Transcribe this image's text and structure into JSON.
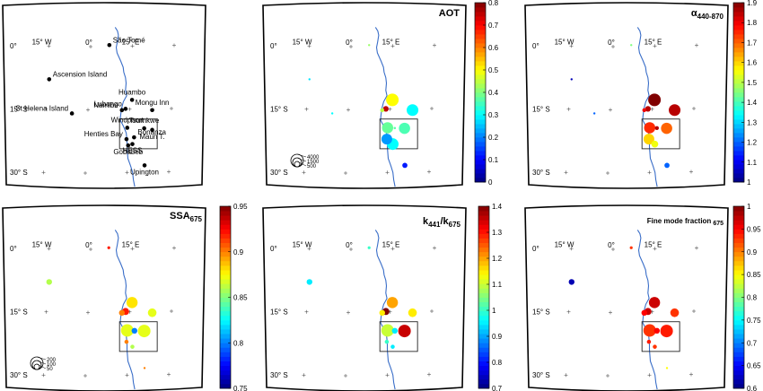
{
  "chart_data": [
    {
      "type": "scatter",
      "subtype": "map-sites",
      "title": "",
      "lon_ticks": [
        "15° W",
        "0°",
        "15° E"
      ],
      "lat_ticks": [
        "0°",
        "15° S",
        "30° S"
      ],
      "sites": [
        {
          "name": "São Tomé",
          "lon": 6.7,
          "lat": 0.3,
          "label_side": "right"
        },
        {
          "name": "Ascension Island",
          "lon": -14.4,
          "lat": -7.9,
          "label_side": "right"
        },
        {
          "name": "St Helena Island",
          "lon": -5.7,
          "lat": -15.9,
          "label_side": "left"
        },
        {
          "name": "Huambo",
          "lon": 15.7,
          "lat": -12.8,
          "label_side": "top"
        },
        {
          "name": "Lubango",
          "lon": 13.5,
          "lat": -14.9,
          "label_side": "left"
        },
        {
          "name": "Mongu Inn",
          "lon": 23.1,
          "lat": -15.3,
          "label_side": "top"
        },
        {
          "name": "Namibe",
          "lon": 12.2,
          "lat": -15.2,
          "label_side": "left"
        },
        {
          "name": "Windpoort",
          "lon": 14.4,
          "lat": -19.4,
          "label_side": "top"
        },
        {
          "name": "Tsumkwe",
          "lon": 20.5,
          "lat": -19.6,
          "label_side": "top"
        },
        {
          "name": "Henties Bay",
          "lon": 14.3,
          "lat": -22.1,
          "label_side": "left"
        },
        {
          "name": "Maun T.",
          "lon": 23.4,
          "lat": -20.0,
          "label_side": "bottom"
        },
        {
          "name": "Bonanza",
          "lon": 17.0,
          "lat": -21.7,
          "label_side": "right"
        },
        {
          "name": "Gobabeb",
          "lon": 15.0,
          "lat": -23.6,
          "label_side": "bottom"
        },
        {
          "name": "HESS",
          "lon": 16.5,
          "lat": -23.3,
          "label_side": "bottom"
        },
        {
          "name": "Upington",
          "lon": 21.2,
          "lat": -28.4,
          "label_side": "bottom"
        }
      ]
    },
    {
      "type": "scatter",
      "subtype": "map-bubble",
      "title": "AOT",
      "colorbar": {
        "min": 0,
        "max": 0.8,
        "ticks": [
          "0",
          "0.1",
          "0.2",
          "0.3",
          "0.4",
          "0.5",
          "0.6",
          "0.7",
          "0.8"
        ]
      },
      "size_legend": [
        "4000",
        "1500",
        "500"
      ],
      "points": [
        {
          "lon": 6.5,
          "lat": 0.3,
          "value": 0.42,
          "n": 80
        },
        {
          "lon": -14.4,
          "lat": -7.9,
          "value": 0.28,
          "n": 90
        },
        {
          "lon": -5.7,
          "lat": -15.9,
          "value": 0.3,
          "n": 5
        },
        {
          "lon": 15.7,
          "lat": -12.8,
          "value": 0.5,
          "n": 3000
        },
        {
          "lon": 13.5,
          "lat": -14.9,
          "value": 0.75,
          "n": 600
        },
        {
          "lon": 12.2,
          "lat": -15.2,
          "value": 0.45,
          "n": 300
        },
        {
          "lon": 23.1,
          "lat": -15.3,
          "value": 0.3,
          "n": 2600
        },
        {
          "lon": 14.4,
          "lat": -19.4,
          "value": 0.38,
          "n": 2400
        },
        {
          "lon": 20.5,
          "lat": -19.6,
          "value": 0.36,
          "n": 2400
        },
        {
          "lon": 17.0,
          "lat": -19.5,
          "value": 0.37,
          "n": 100
        },
        {
          "lon": 14.3,
          "lat": -22.1,
          "value": 0.22,
          "n": 2200
        },
        {
          "lon": 16.5,
          "lat": -23.3,
          "value": 0.3,
          "n": 2600
        },
        {
          "lon": 21.2,
          "lat": -28.4,
          "value": 0.12,
          "n": 500
        }
      ]
    },
    {
      "type": "scatter",
      "subtype": "map-bubble",
      "title": "α440-870",
      "title_main": "α",
      "title_sub": "440-870",
      "colorbar": {
        "min": 1,
        "max": 1.9,
        "ticks": [
          "1",
          "1.1",
          "1.2",
          "1.3",
          "1.4",
          "1.5",
          "1.6",
          "1.7",
          "1.8",
          "1.9"
        ]
      },
      "points": [
        {
          "lon": 6.5,
          "lat": 0.3,
          "value": 1.45,
          "n": 80
        },
        {
          "lon": -14.4,
          "lat": -7.9,
          "value": 1.05,
          "n": 90
        },
        {
          "lon": -5.7,
          "lat": -15.9,
          "value": 1.2,
          "n": 5
        },
        {
          "lon": 15.7,
          "lat": -12.8,
          "value": 1.95,
          "n": 3000
        },
        {
          "lon": 13.5,
          "lat": -14.9,
          "value": 1.85,
          "n": 600
        },
        {
          "lon": 12.2,
          "lat": -15.2,
          "value": 1.8,
          "n": 300
        },
        {
          "lon": 23.1,
          "lat": -15.3,
          "value": 1.85,
          "n": 2600
        },
        {
          "lon": 14.4,
          "lat": -19.4,
          "value": 1.75,
          "n": 2400
        },
        {
          "lon": 20.5,
          "lat": -19.6,
          "value": 1.7,
          "n": 2400
        },
        {
          "lon": 17.0,
          "lat": -19.5,
          "value": 1.85,
          "n": 300
        },
        {
          "lon": 14.3,
          "lat": -22.1,
          "value": 1.6,
          "n": 2200
        },
        {
          "lon": 16.5,
          "lat": -23.3,
          "value": 1.55,
          "n": 900
        },
        {
          "lon": 21.2,
          "lat": -28.4,
          "value": 1.2,
          "n": 500
        }
      ]
    },
    {
      "type": "scatter",
      "subtype": "map-bubble",
      "title": "SSA675",
      "title_main": "SSA",
      "title_sub": "675",
      "colorbar": {
        "min": 0.75,
        "max": 0.95,
        "ticks": [
          "0.75",
          "0.8",
          "0.85",
          "0.9",
          "0.95"
        ]
      },
      "size_legend": [
        "200",
        "100",
        "50"
      ],
      "points": [
        {
          "lon": 6.5,
          "lat": 0.3,
          "value": 0.92,
          "n": 10
        },
        {
          "lon": -14.4,
          "lat": -7.9,
          "value": 0.86,
          "n": 40
        },
        {
          "lon": 15.7,
          "lat": -12.8,
          "value": 0.88,
          "n": 150
        },
        {
          "lon": 13.5,
          "lat": -14.9,
          "value": 0.92,
          "n": 60
        },
        {
          "lon": 12.2,
          "lat": -15.2,
          "value": 0.9,
          "n": 40
        },
        {
          "lon": 23.1,
          "lat": -15.3,
          "value": 0.87,
          "n": 90
        },
        {
          "lon": 14.4,
          "lat": -19.4,
          "value": 0.87,
          "n": 190
        },
        {
          "lon": 20.5,
          "lat": -19.6,
          "value": 0.87,
          "n": 190
        },
        {
          "lon": 17.0,
          "lat": -19.5,
          "value": 0.8,
          "n": 40
        },
        {
          "lon": 14.3,
          "lat": -22.1,
          "value": 0.9,
          "n": 20
        },
        {
          "lon": 16.5,
          "lat": -23.3,
          "value": 0.86,
          "n": 20
        },
        {
          "lon": 21.2,
          "lat": -28.4,
          "value": 0.9,
          "n": 5
        }
      ]
    },
    {
      "type": "scatter",
      "subtype": "map-bubble",
      "title": "k441/k675",
      "title_a": "k",
      "title_a_sub": "441",
      "title_b": "/k",
      "title_b_sub": "675",
      "colorbar": {
        "min": 0.7,
        "max": 1.4,
        "ticks": [
          "0.7",
          "0.8",
          "0.9",
          "1",
          "1.1",
          "1.2",
          "1.3",
          "1.4"
        ]
      },
      "points": [
        {
          "lon": 6.5,
          "lat": 0.3,
          "value": 1.0,
          "n": 10
        },
        {
          "lon": -14.4,
          "lat": -7.9,
          "value": 0.95,
          "n": 40
        },
        {
          "lon": 15.7,
          "lat": -12.8,
          "value": 1.2,
          "n": 150
        },
        {
          "lon": 13.5,
          "lat": -14.9,
          "value": 1.4,
          "n": 60
        },
        {
          "lon": 12.2,
          "lat": -15.2,
          "value": 1.15,
          "n": 40
        },
        {
          "lon": 23.1,
          "lat": -15.3,
          "value": 1.15,
          "n": 90
        },
        {
          "lon": 14.4,
          "lat": -19.4,
          "value": 1.1,
          "n": 190
        },
        {
          "lon": 20.5,
          "lat": -19.6,
          "value": 1.35,
          "n": 190
        },
        {
          "lon": 17.0,
          "lat": -19.5,
          "value": 0.95,
          "n": 40
        },
        {
          "lon": 14.3,
          "lat": -22.1,
          "value": 1.0,
          "n": 20
        },
        {
          "lon": 16.5,
          "lat": -23.3,
          "value": 0.95,
          "n": 20
        }
      ]
    },
    {
      "type": "scatter",
      "subtype": "map-bubble",
      "title": "Fine mode fraction675",
      "title_main": "Fine mode fraction",
      "title_sub": "675",
      "colorbar": {
        "min": 0.6,
        "max": 1,
        "ticks": [
          "0.6",
          "0.65",
          "0.7",
          "0.75",
          "0.8",
          "0.85",
          "0.9",
          "0.95",
          "1"
        ]
      },
      "points": [
        {
          "lon": 6.5,
          "lat": 0.3,
          "value": 0.93,
          "n": 10
        },
        {
          "lon": -14.4,
          "lat": -7.9,
          "value": 0.62,
          "n": 40
        },
        {
          "lon": 15.7,
          "lat": -12.8,
          "value": 0.97,
          "n": 150
        },
        {
          "lon": 13.5,
          "lat": -14.9,
          "value": 0.97,
          "n": 60
        },
        {
          "lon": 12.2,
          "lat": -15.2,
          "value": 0.95,
          "n": 40
        },
        {
          "lon": 23.1,
          "lat": -15.3,
          "value": 0.93,
          "n": 90
        },
        {
          "lon": 14.4,
          "lat": -19.4,
          "value": 0.93,
          "n": 190
        },
        {
          "lon": 20.5,
          "lat": -19.6,
          "value": 0.94,
          "n": 190
        },
        {
          "lon": 17.0,
          "lat": -19.5,
          "value": 0.95,
          "n": 40
        },
        {
          "lon": 14.3,
          "lat": -22.1,
          "value": 0.94,
          "n": 20
        },
        {
          "lon": 16.5,
          "lat": -23.3,
          "value": 0.93,
          "n": 20
        },
        {
          "lon": 21.2,
          "lat": -28.4,
          "value": 0.85,
          "n": 5
        }
      ]
    }
  ]
}
